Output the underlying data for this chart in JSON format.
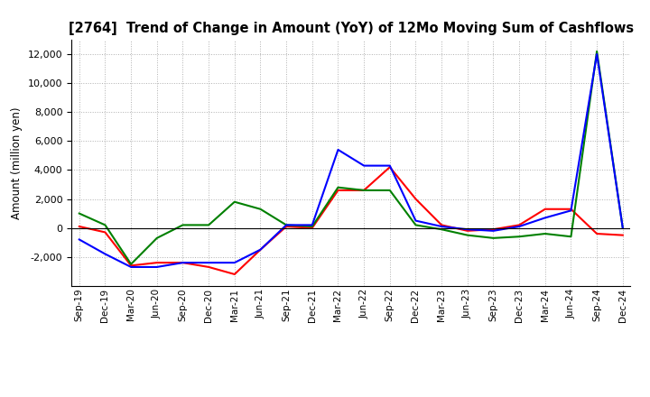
{
  "title": "[2764]  Trend of Change in Amount (YoY) of 12Mo Moving Sum of Cashflows",
  "ylabel": "Amount (million yen)",
  "x_labels": [
    "Sep-19",
    "Dec-19",
    "Mar-20",
    "Jun-20",
    "Sep-20",
    "Dec-20",
    "Mar-21",
    "Jun-21",
    "Sep-21",
    "Dec-21",
    "Mar-22",
    "Jun-22",
    "Sep-22",
    "Dec-22",
    "Mar-23",
    "Jun-23",
    "Sep-23",
    "Dec-23",
    "Mar-24",
    "Jun-24",
    "Sep-24",
    "Dec-24"
  ],
  "operating": [
    100,
    -300,
    -2600,
    -2400,
    -2400,
    -2700,
    -3200,
    -1500,
    100,
    0,
    2600,
    2600,
    4200,
    2000,
    200,
    -200,
    -100,
    200,
    1300,
    1300,
    -400,
    -500
  ],
  "investing": [
    1000,
    200,
    -2500,
    -700,
    200,
    200,
    1800,
    1300,
    200,
    100,
    2800,
    2600,
    2600,
    200,
    -100,
    -500,
    -700,
    -600,
    -400,
    -600,
    12200,
    0
  ],
  "free": [
    -800,
    -1800,
    -2700,
    -2700,
    -2400,
    -2400,
    -2400,
    -1500,
    200,
    200,
    5400,
    4300,
    4300,
    500,
    100,
    -100,
    -200,
    100,
    700,
    1200,
    12000,
    0
  ],
  "ylim": [
    -4000,
    13000
  ],
  "yticks": [
    -2000,
    0,
    2000,
    4000,
    6000,
    8000,
    10000,
    12000
  ],
  "operating_color": "#ff0000",
  "investing_color": "#008000",
  "free_color": "#0000ff",
  "background_color": "#ffffff",
  "grid_color": "#b0b0b0"
}
